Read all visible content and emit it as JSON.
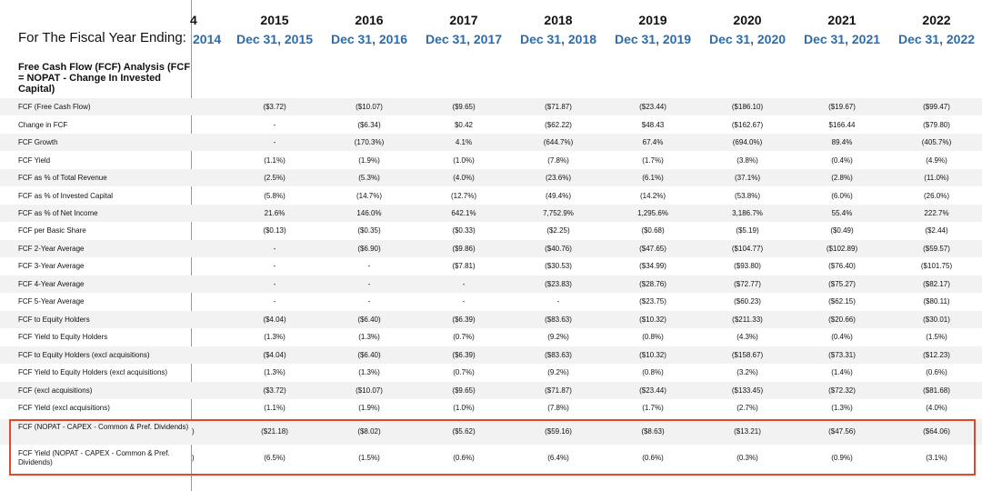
{
  "header": {
    "fiscal_label": "For The Fiscal Year Ending:",
    "clipped_year": "4",
    "clipped_date": "2014",
    "columns": [
      {
        "year": "2015",
        "date": "Dec 31, 2015"
      },
      {
        "year": "2016",
        "date": "Dec 31, 2016"
      },
      {
        "year": "2017",
        "date": "Dec 31, 2017"
      },
      {
        "year": "2018",
        "date": "Dec 31, 2018"
      },
      {
        "year": "2019",
        "date": "Dec 31, 2019"
      },
      {
        "year": "2020",
        "date": "Dec 31, 2020"
      },
      {
        "year": "2021",
        "date": "Dec 31, 2021"
      },
      {
        "year": "2022",
        "date": "Dec 31, 2022"
      }
    ]
  },
  "section_title": "Free Cash Flow (FCF) Analysis (FCF = NOPAT - Change In Invested Capital)",
  "rows": [
    {
      "label": "FCF (Free Cash Flow)",
      "values": [
        "($3.72)",
        "($10.07)",
        "($9.65)",
        "($71.87)",
        "($23.44)",
        "($186.10)",
        "($19.67)",
        "($99.47)"
      ]
    },
    {
      "label": "Change in FCF",
      "values": [
        "-",
        "($6.34)",
        "$0.42",
        "($62.22)",
        "$48.43",
        "($162.67)",
        "$166.44",
        "($79.80)"
      ]
    },
    {
      "label": "FCF Growth",
      "values": [
        "-",
        "(170.3%)",
        "4.1%",
        "(644.7%)",
        "67.4%",
        "(694.0%)",
        "89.4%",
        "(405.7%)"
      ]
    },
    {
      "label": "FCF Yield",
      "values": [
        "(1.1%)",
        "(1.9%)",
        "(1.0%)",
        "(7.8%)",
        "(1.7%)",
        "(3.8%)",
        "(0.4%)",
        "(4.9%)"
      ]
    },
    {
      "label": "FCF as % of Total Revenue",
      "values": [
        "(2.5%)",
        "(5.3%)",
        "(4.0%)",
        "(23.6%)",
        "(6.1%)",
        "(37.1%)",
        "(2.8%)",
        "(11.0%)"
      ]
    },
    {
      "label": "FCF as % of Invested Capital",
      "values": [
        "(5.8%)",
        "(14.7%)",
        "(12.7%)",
        "(49.4%)",
        "(14.2%)",
        "(53.8%)",
        "(6.0%)",
        "(26.0%)"
      ]
    },
    {
      "label": "FCF as % of Net Income",
      "values": [
        "21.6%",
        "146.0%",
        "642.1%",
        "7,752.9%",
        "1,295.6%",
        "3,186.7%",
        "55.4%",
        "222.7%"
      ]
    },
    {
      "label": "FCF per Basic Share",
      "values": [
        "($0.13)",
        "($0.35)",
        "($0.33)",
        "($2.25)",
        "($0.68)",
        "($5.19)",
        "($0.49)",
        "($2.44)"
      ]
    },
    {
      "label": "FCF 2-Year Average",
      "values": [
        "-",
        "($6.90)",
        "($9.86)",
        "($40.76)",
        "($47.65)",
        "($104.77)",
        "($102.89)",
        "($59.57)"
      ]
    },
    {
      "label": "FCF 3-Year Average",
      "values": [
        "-",
        "-",
        "($7.81)",
        "($30.53)",
        "($34.99)",
        "($93.80)",
        "($76.40)",
        "($101.75)"
      ]
    },
    {
      "label": "FCF 4-Year Average",
      "values": [
        "-",
        "-",
        "-",
        "($23.83)",
        "($28.76)",
        "($72.77)",
        "($75.27)",
        "($82.17)"
      ]
    },
    {
      "label": "FCF 5-Year Average",
      "values": [
        "-",
        "-",
        "-",
        "-",
        "($23.75)",
        "($60.23)",
        "($62.15)",
        "($80.11)"
      ]
    },
    {
      "label": "FCF to Equity Holders",
      "values": [
        "($4.04)",
        "($6.40)",
        "($6.39)",
        "($83.63)",
        "($10.32)",
        "($211.33)",
        "($20.66)",
        "($30.01)"
      ]
    },
    {
      "label": "FCF Yield to Equity Holders",
      "values": [
        "(1.3%)",
        "(1.3%)",
        "(0.7%)",
        "(9.2%)",
        "(0.8%)",
        "(4.3%)",
        "(0.4%)",
        "(1.5%)"
      ]
    },
    {
      "label": "FCF to Equity Holders (excl acquisitions)",
      "values": [
        "($4.04)",
        "($6.40)",
        "($6.39)",
        "($83.63)",
        "($10.32)",
        "($158.67)",
        "($73.31)",
        "($12.23)"
      ]
    },
    {
      "label": "FCF Yield to Equity Holders (excl acquisitions)",
      "values": [
        "(1.3%)",
        "(1.3%)",
        "(0.7%)",
        "(9.2%)",
        "(0.8%)",
        "(3.2%)",
        "(1.4%)",
        "(0.6%)"
      ]
    },
    {
      "label": "FCF (excl acquisitions)",
      "values": [
        "($3.72)",
        "($10.07)",
        "($9.65)",
        "($71.87)",
        "($23.44)",
        "($133.45)",
        "($72.32)",
        "($81.68)"
      ]
    },
    {
      "label": "FCF Yield (excl acquisitions)",
      "values": [
        "(1.1%)",
        "(1.9%)",
        "(1.0%)",
        "(7.8%)",
        "(1.7%)",
        "(2.7%)",
        "(1.3%)",
        "(4.0%)"
      ]
    },
    {
      "label": "FCF (NOPAT - CAPEX - Common & Pref. Dividends)",
      "clip": ")",
      "values": [
        "($21.18)",
        "($8.02)",
        "($5.62)",
        "($59.16)",
        "($8.63)",
        "($13.21)",
        "($47.56)",
        "($64.06)"
      ]
    },
    {
      "label": "FCF Yield (NOPAT - CAPEX - Common & Pref. Dividends)",
      "clip": ")",
      "values": [
        "(6.5%)",
        "(1.5%)",
        "(0.6%)",
        "(6.4%)",
        "(0.6%)",
        "(0.3%)",
        "(0.9%)",
        "(3.1%)"
      ]
    }
  ],
  "colors": {
    "accent_blue": "#2b6cb0",
    "highlight_red": "#e8452c",
    "row_shade": "#f2f2f2"
  }
}
